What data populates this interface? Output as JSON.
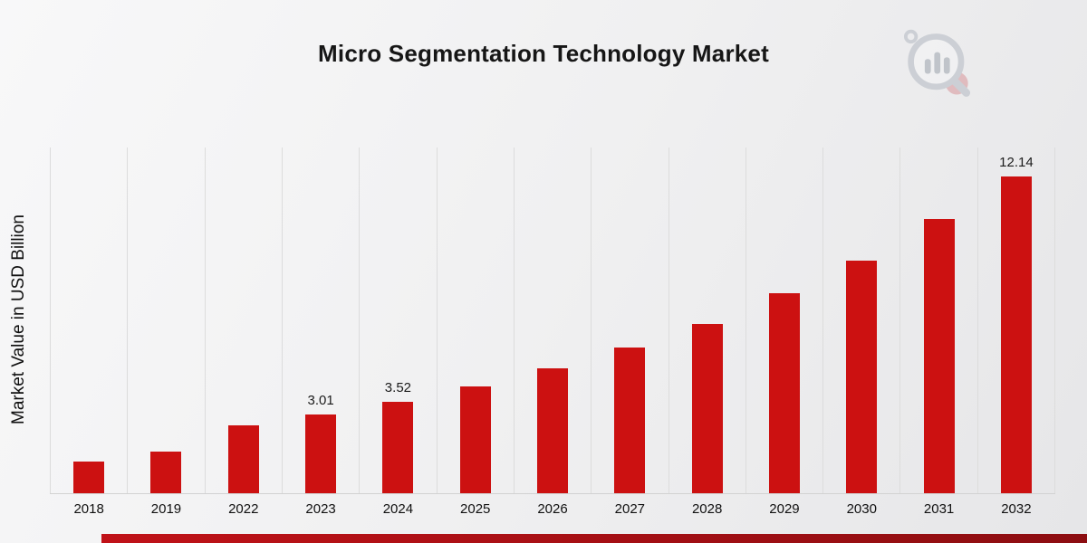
{
  "page": {
    "title": "Micro Segmentation Technology Market",
    "ylabel": "Market Value in USD Billion"
  },
  "chart_data": {
    "type": "bar",
    "title": "Micro Segmentation Technology Market",
    "xlabel": "",
    "ylabel": "Market Value in USD Billion",
    "ylim": [
      0,
      13
    ],
    "grid": "vertical-gridlines-only",
    "legend": "none",
    "bar_color": "#cc1111",
    "categories": [
      "2018",
      "2019",
      "2022",
      "2023",
      "2024",
      "2025",
      "2026",
      "2027",
      "2028",
      "2029",
      "2030",
      "2031",
      "2032"
    ],
    "values": [
      1.2,
      1.6,
      2.6,
      3.01,
      3.52,
      4.1,
      4.8,
      5.6,
      6.5,
      7.65,
      8.9,
      10.5,
      12.14
    ],
    "data_labels": [
      "",
      "",
      "",
      "3.01",
      "3.52",
      "",
      "",
      "",
      "",
      "",
      "",
      "",
      "12.14"
    ]
  },
  "branding": {
    "logo": "bar-chart-magnifier-logo",
    "accent_color": "#cc1111",
    "bottom_bar_gradient": [
      "#c01218",
      "#8c0d11"
    ]
  }
}
